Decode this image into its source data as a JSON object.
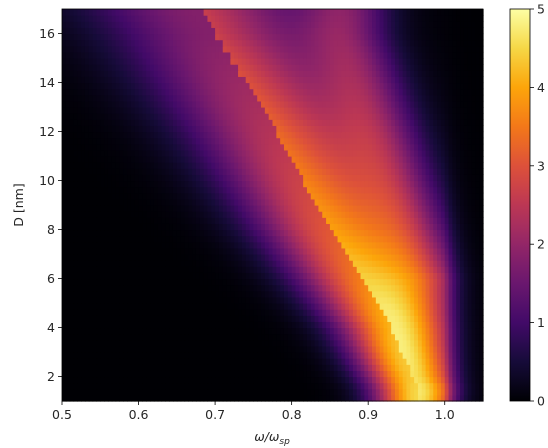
{
  "chart_data": {
    "type": "heatmap",
    "colormap": "inferno",
    "title": "",
    "xlabel": "ω/ω",
    "xlabel_subscript": "sp",
    "ylabel": "D [nm]",
    "xlim": [
      0.5,
      1.05
    ],
    "ylim": [
      1,
      17
    ],
    "x_ticks": [
      0.5,
      0.6,
      0.7,
      0.8,
      0.9,
      1.0
    ],
    "x_tick_labels": [
      "0.5",
      "0.6",
      "0.7",
      "0.8",
      "0.9",
      "1.0"
    ],
    "y_ticks": [
      2,
      4,
      6,
      8,
      10,
      12,
      14,
      16
    ],
    "y_tick_labels": [
      "2",
      "4",
      "6",
      "8",
      "10",
      "12",
      "14",
      "16"
    ],
    "colorbar": {
      "vmin": 0,
      "vmax": 5,
      "ticks": [
        0,
        1,
        2,
        3,
        4,
        5
      ],
      "tick_labels": [
        "0",
        "1",
        "2",
        "3",
        "4",
        "5"
      ]
    },
    "grid": false,
    "data_summary": {
      "description_points": [
        {
          "D": 1.5,
          "peak_omega": 0.965,
          "peak_value": 4.5
        },
        {
          "D": 4,
          "peak_omega": 0.93,
          "peak_value": 3.6
        },
        {
          "D": 8,
          "peak_omega": 0.85,
          "peak_value": 3.0
        },
        {
          "D": 12,
          "peak_omega": 0.78,
          "peak_value": 2.4
        },
        {
          "D": 16,
          "peak_omega": 0.7,
          "peak_value": 1.8
        }
      ],
      "secondary_branch": [
        {
          "D": 6,
          "peak_omega": 0.97,
          "peak_value": 1.8
        },
        {
          "D": 10,
          "peak_omega": 0.93,
          "peak_value": 1.6
        },
        {
          "D": 16,
          "peak_omega": 0.87,
          "peak_value": 1.5
        }
      ]
    }
  }
}
